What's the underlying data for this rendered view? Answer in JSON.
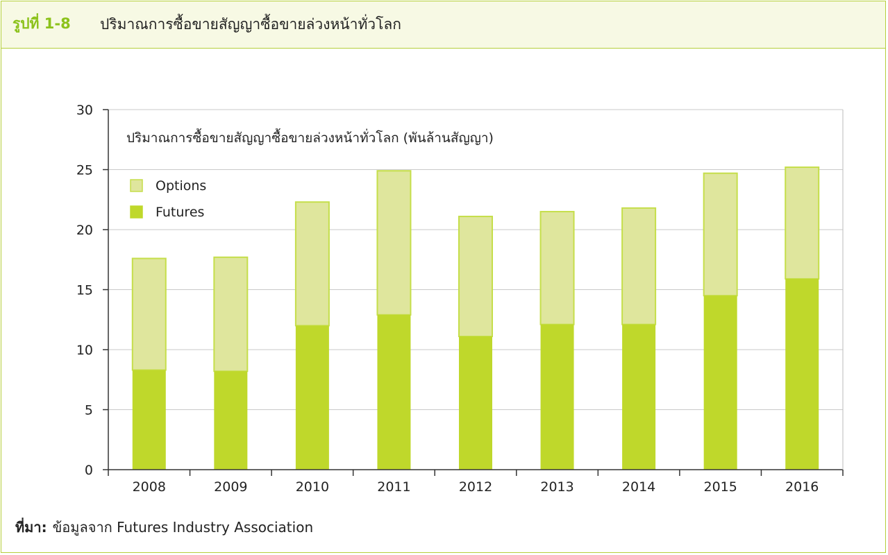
{
  "figure": {
    "label": "รูปที่ 1-8",
    "title": "ปริมาณการซื้อขายสัญญาซื้อขายล่วงหน้าทั่วโลก"
  },
  "source": {
    "label": "ที่มา:",
    "text": "ข้อมูลจาก Futures Industry Association"
  },
  "colors": {
    "accent": "#8cc21b",
    "border": "#b5cf3b",
    "futures": "#bfd82b",
    "options": "#dfe69d",
    "options_edge": "#c5de4a"
  },
  "chart_data": {
    "type": "bar",
    "stacked": true,
    "title": "ปริมาณการซื้อขายสัญญาซื้อขายล่วงหน้าทั่วโลก (พันล้านสัญญา)",
    "xlabel": "",
    "ylabel": "",
    "categories": [
      "2008",
      "2009",
      "2010",
      "2011",
      "2012",
      "2013",
      "2014",
      "2015",
      "2016"
    ],
    "series": [
      {
        "name": "Futures",
        "values": [
          8.3,
          8.2,
          12.0,
          12.9,
          11.1,
          12.1,
          12.1,
          14.5,
          15.9
        ]
      },
      {
        "name": "Options",
        "values": [
          9.3,
          9.5,
          10.3,
          12.0,
          10.0,
          9.4,
          9.7,
          10.2,
          9.3
        ]
      }
    ],
    "ylim": [
      0,
      30
    ],
    "yticks": [
      0,
      5,
      10,
      15,
      20,
      25,
      30
    ],
    "grid": true,
    "legend": {
      "placement": "top-left",
      "entries": [
        "Options",
        "Futures"
      ]
    }
  }
}
